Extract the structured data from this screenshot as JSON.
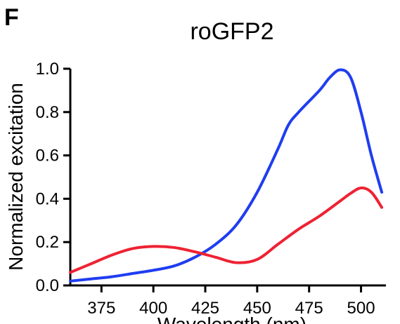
{
  "panel_label": "F",
  "chart_data": {
    "type": "line",
    "title": "roGFP2",
    "xlabel": "Wavelength (nm)",
    "ylabel": "Normalized excitation",
    "xlim": [
      360,
      512
    ],
    "ylim": [
      0.0,
      1.0
    ],
    "xticks": [
      "375",
      "400",
      "425",
      "450",
      "475",
      "500"
    ],
    "yticks": [
      "0.0",
      "0.2",
      "0.4",
      "0.6",
      "0.8",
      "1.0"
    ],
    "grid": false,
    "legend": "none",
    "series": [
      {
        "color": "#1f3df0",
        "x": [
          360,
          370,
          380,
          390,
          400,
          410,
          420,
          430,
          440,
          450,
          460,
          465,
          470,
          480,
          485,
          490,
          495,
          500,
          505,
          510
        ],
        "y": [
          0.02,
          0.03,
          0.04,
          0.055,
          0.07,
          0.09,
          0.13,
          0.19,
          0.28,
          0.43,
          0.63,
          0.74,
          0.8,
          0.9,
          0.96,
          0.995,
          0.96,
          0.8,
          0.6,
          0.43
        ]
      },
      {
        "color": "#ee2233",
        "x": [
          360,
          370,
          380,
          390,
          400,
          410,
          420,
          430,
          440,
          450,
          460,
          470,
          480,
          490,
          495,
          500,
          505,
          510
        ],
        "y": [
          0.06,
          0.1,
          0.14,
          0.17,
          0.18,
          0.175,
          0.155,
          0.13,
          0.105,
          0.12,
          0.19,
          0.26,
          0.32,
          0.39,
          0.425,
          0.45,
          0.43,
          0.36
        ]
      }
    ]
  }
}
